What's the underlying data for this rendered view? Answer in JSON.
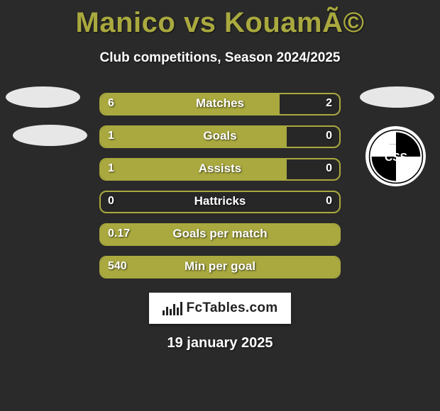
{
  "title": "Manico vs KouamÃ©",
  "subtitle": "Club competitions, Season 2024/2025",
  "date": "19 january 2025",
  "logo_text": "FcTables.com",
  "colors": {
    "accent": "#a9a93f",
    "background": "#2a2a2a",
    "ellipse": "#e7e7e7",
    "text": "#ffffff"
  },
  "chart": {
    "type": "comparison-bars",
    "bar_border_color": "#a9a93f",
    "bar_fill_color": "#a9a93f",
    "label_fontsize": 17,
    "value_fontsize": 16,
    "rows": [
      {
        "label": "Matches",
        "left_value": "6",
        "right_value": "2",
        "left_pct": 75,
        "right_pct": 25
      },
      {
        "label": "Goals",
        "left_value": "1",
        "right_value": "0",
        "left_pct": 78,
        "right_pct": 22
      },
      {
        "label": "Assists",
        "left_value": "1",
        "right_value": "0",
        "left_pct": 78,
        "right_pct": 22
      },
      {
        "label": "Hattricks",
        "left_value": "0",
        "right_value": "0",
        "left_pct": 0,
        "right_pct": 0
      },
      {
        "label": "Goals per match",
        "left_value": "0.17",
        "right_value": "",
        "left_pct": 100,
        "right_pct": 0
      },
      {
        "label": "Min per goal",
        "left_value": "540",
        "right_value": "",
        "left_pct": 100,
        "right_pct": 0
      }
    ]
  },
  "decor": {
    "left_ellipses": 2,
    "right_ellipses": 1,
    "club_badge_text": "CSS"
  }
}
